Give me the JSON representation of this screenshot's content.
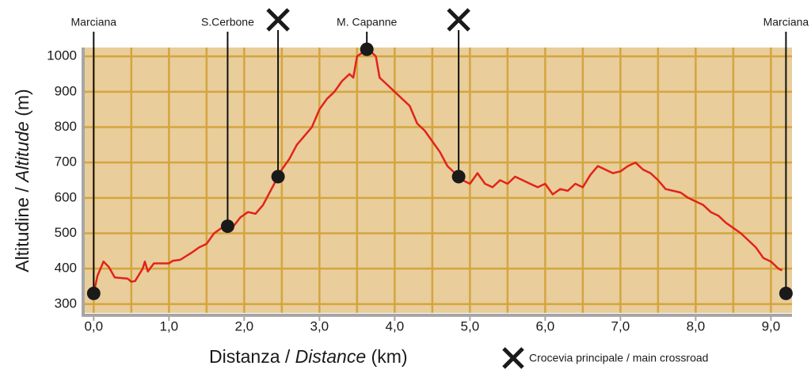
{
  "chart_data": {
    "type": "line",
    "x": [
      0.0,
      0.05,
      0.13,
      0.2,
      0.28,
      0.45,
      0.5,
      0.55,
      0.65,
      0.68,
      0.72,
      0.8,
      1.0,
      1.05,
      1.15,
      1.3,
      1.4,
      1.5,
      1.6,
      1.7,
      1.78,
      1.85,
      1.95,
      2.05,
      2.15,
      2.25,
      2.4,
      2.5,
      2.6,
      2.7,
      2.8,
      2.9,
      3.0,
      3.1,
      3.2,
      3.3,
      3.4,
      3.45,
      3.5,
      3.6,
      3.7,
      3.75,
      3.8,
      3.9,
      4.0,
      4.1,
      4.2,
      4.3,
      4.4,
      4.5,
      4.6,
      4.7,
      4.8,
      4.9,
      5.0,
      5.1,
      5.2,
      5.3,
      5.4,
      5.5,
      5.6,
      5.7,
      5.8,
      5.9,
      6.0,
      6.1,
      6.2,
      6.3,
      6.4,
      6.5,
      6.6,
      6.7,
      6.8,
      6.9,
      7.0,
      7.1,
      7.2,
      7.3,
      7.4,
      7.5,
      7.6,
      7.7,
      7.8,
      7.9,
      8.0,
      8.1,
      8.2,
      8.3,
      8.4,
      8.5,
      8.6,
      8.7,
      8.8,
      8.9,
      9.0,
      9.1,
      9.15
    ],
    "values": [
      330,
      380,
      420,
      405,
      375,
      372,
      363,
      365,
      400,
      420,
      392,
      415,
      415,
      422,
      425,
      445,
      460,
      470,
      500,
      515,
      522,
      518,
      545,
      560,
      555,
      580,
      640,
      680,
      710,
      750,
      775,
      800,
      850,
      880,
      900,
      930,
      950,
      940,
      1000,
      1015,
      1010,
      1000,
      940,
      920,
      900,
      880,
      860,
      810,
      790,
      760,
      730,
      690,
      670,
      650,
      640,
      670,
      640,
      630,
      650,
      640,
      660,
      650,
      640,
      630,
      640,
      610,
      625,
      620,
      640,
      630,
      665,
      690,
      680,
      670,
      675,
      690,
      700,
      680,
      670,
      650,
      625,
      620,
      615,
      600,
      590,
      580,
      560,
      550,
      530,
      515,
      500,
      480,
      460,
      430,
      420,
      400,
      395
    ],
    "color": "#e2231a",
    "xlim": [
      -0.14,
      9.28
    ],
    "ylim": [
      275,
      1025
    ],
    "xticks": [
      {
        "value": 0,
        "label": "0,0"
      },
      {
        "value": 1,
        "label": "1,0"
      },
      {
        "value": 2,
        "label": "2,0"
      },
      {
        "value": 3,
        "label": "3,0"
      },
      {
        "value": 4,
        "label": "4,0"
      },
      {
        "value": 5,
        "label": "5,0"
      },
      {
        "value": 6,
        "label": "6,0"
      },
      {
        "value": 7,
        "label": "7,0"
      },
      {
        "value": 8,
        "label": "8,0"
      },
      {
        "value": 9,
        "label": "9,0"
      }
    ],
    "x_minor_ticks": [
      0.5,
      1.5,
      2.5,
      3.5,
      4.5,
      5.5,
      6.5,
      7.5,
      8.5
    ],
    "yticks": [
      300,
      400,
      500,
      600,
      700,
      800,
      900,
      1000
    ],
    "grid": true,
    "x_label": [
      "Distanza / ",
      "Distance",
      " (km)"
    ],
    "y_label": [
      "Altitudine / ",
      "Altitude",
      " (m)"
    ],
    "waypoints": [
      {
        "label": "Marciana",
        "x": 0.0,
        "y": 330
      },
      {
        "label": "S.Cerbone",
        "x": 1.78,
        "y": 520
      },
      {
        "kind": "crossroad",
        "x": 2.45,
        "y": 660
      },
      {
        "label": "M. Capanne",
        "x": 3.63,
        "y": 1020
      },
      {
        "kind": "crossroad",
        "x": 4.85,
        "y": 660
      },
      {
        "label": "Marciana",
        "x": 9.2,
        "y": 330
      }
    ],
    "legend": "Crocevia principale / main crossroad"
  }
}
